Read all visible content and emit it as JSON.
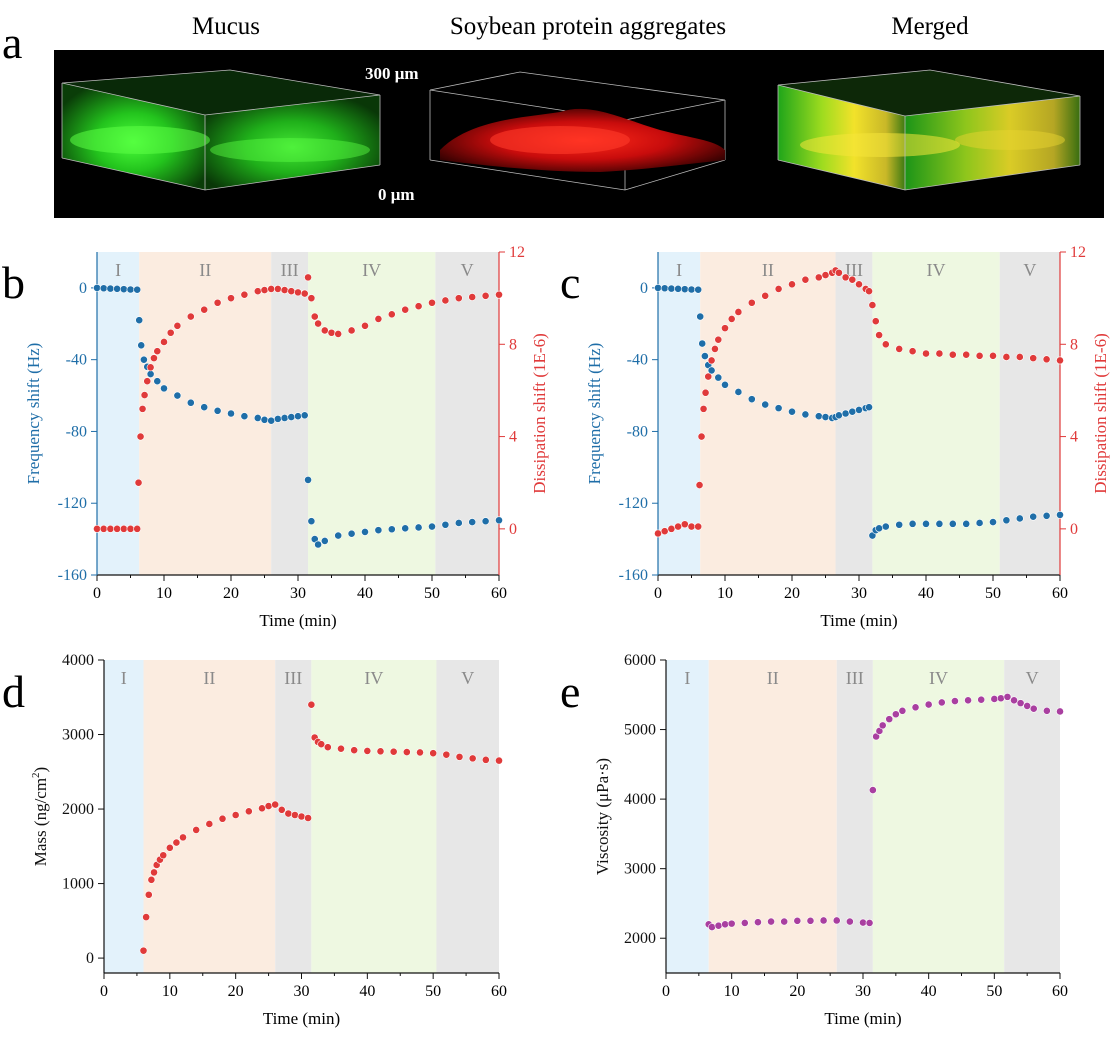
{
  "panel_a": {
    "letter": "a",
    "titles": [
      "Mucus",
      "Soybean protein aggregates",
      "Merged"
    ],
    "scale_top": "300 μm",
    "scale_bottom": "0 μm"
  },
  "colors": {
    "frequency": "#1f6ea8",
    "dissipation": "#e03a3a",
    "mass": "#e03a3a",
    "viscosity": "#a93fa0",
    "region_I": "#e3f2fb",
    "region_II": "#fbece0",
    "region_III": "#e7e7e7",
    "region_IV": "#eef8e1",
    "region_V": "#e7e7e7"
  },
  "chart_data": [
    {
      "panel": "b",
      "type": "scatter",
      "xlabel": "Time (min)",
      "ylabel": "Frequency shift (Hz)",
      "y2label": "Dissipation shift (1E-6)",
      "xlim": [
        0,
        60
      ],
      "ylim": [
        -160,
        20
      ],
      "y2lim": [
        -2,
        12
      ],
      "xticks": [
        0,
        10,
        20,
        30,
        40,
        50,
        60
      ],
      "yticks": [
        0,
        -40,
        -80,
        -120,
        -160
      ],
      "y2ticks": [
        0,
        4,
        8,
        12
      ],
      "regions": [
        {
          "label": "I",
          "start": 0,
          "end": 6.3,
          "color": "#e3f2fb"
        },
        {
          "label": "II",
          "start": 6.3,
          "end": 26,
          "color": "#fbece0"
        },
        {
          "label": "III",
          "start": 26,
          "end": 31.5,
          "color": "#e7e7e7"
        },
        {
          "label": "IV",
          "start": 31.5,
          "end": 50.5,
          "color": "#eef8e1"
        },
        {
          "label": "V",
          "start": 50.5,
          "end": 60,
          "color": "#e7e7e7"
        }
      ],
      "series": [
        {
          "axis": "left",
          "color": "#1f6ea8",
          "x": [
            0,
            1,
            2,
            3,
            4,
            5,
            6,
            6.3,
            6.6,
            7,
            7.5,
            8,
            9,
            10,
            12,
            14,
            16,
            18,
            20,
            22,
            24,
            25,
            26,
            27,
            28,
            29,
            30,
            31,
            31.5,
            32,
            32.5,
            33,
            34,
            36,
            38,
            40,
            42,
            44,
            46,
            48,
            50,
            52,
            54,
            56,
            58,
            60
          ],
          "y": [
            0,
            -0.2,
            -0.4,
            -0.5,
            -0.7,
            -0.9,
            -1,
            -18,
            -32,
            -40,
            -44,
            -48,
            -52,
            -56,
            -60,
            -64,
            -66.5,
            -68.5,
            -70,
            -71.5,
            -72.5,
            -73.5,
            -74,
            -73,
            -72.5,
            -72,
            -71.5,
            -71,
            -107,
            -130,
            -140,
            -143,
            -141,
            -138,
            -137,
            -136,
            -135,
            -134.5,
            -134,
            -133.5,
            -133,
            -132,
            -131,
            -130.5,
            -130,
            -129.5
          ]
        },
        {
          "axis": "right",
          "color": "#e03a3a",
          "x": [
            0,
            1,
            2,
            3,
            4,
            5,
            6,
            6.2,
            6.5,
            6.8,
            7.1,
            7.5,
            8,
            8.5,
            9,
            10,
            11,
            12,
            14,
            16,
            18,
            20,
            22,
            24,
            25,
            26,
            27,
            28,
            29,
            30,
            31,
            31.5,
            32,
            32.5,
            33,
            34,
            35,
            36,
            38,
            40,
            42,
            44,
            46,
            48,
            50,
            52,
            54,
            56,
            58,
            60
          ],
          "y": [
            0,
            0,
            0,
            0,
            0,
            0,
            0,
            2,
            4,
            5.2,
            5.8,
            6.4,
            7,
            7.4,
            7.7,
            8.1,
            8.5,
            8.8,
            9.2,
            9.5,
            9.8,
            10,
            10.15,
            10.3,
            10.35,
            10.4,
            10.4,
            10.35,
            10.3,
            10.25,
            10.2,
            10.9,
            10,
            9.2,
            8.9,
            8.6,
            8.5,
            8.45,
            8.6,
            8.8,
            9.1,
            9.3,
            9.5,
            9.65,
            9.8,
            9.9,
            10,
            10.05,
            10.1,
            10.15
          ]
        }
      ]
    },
    {
      "panel": "c",
      "type": "scatter",
      "xlabel": "Time (min)",
      "ylabel": "Frequency shift (Hz)",
      "y2label": "Dissipation shift (1E-6)",
      "xlim": [
        0,
        60
      ],
      "ylim": [
        -160,
        20
      ],
      "y2lim": [
        -2,
        12
      ],
      "xticks": [
        0,
        10,
        20,
        30,
        40,
        50,
        60
      ],
      "yticks": [
        0,
        -40,
        -80,
        -120,
        -160
      ],
      "y2ticks": [
        0,
        4,
        8,
        12
      ],
      "regions": [
        {
          "label": "I",
          "start": 0,
          "end": 6.3,
          "color": "#e3f2fb"
        },
        {
          "label": "II",
          "start": 6.3,
          "end": 26.5,
          "color": "#fbece0"
        },
        {
          "label": "III",
          "start": 26.5,
          "end": 32,
          "color": "#e7e7e7"
        },
        {
          "label": "IV",
          "start": 32,
          "end": 51,
          "color": "#eef8e1"
        },
        {
          "label": "V",
          "start": 51,
          "end": 60,
          "color": "#e7e7e7"
        }
      ],
      "series": [
        {
          "axis": "left",
          "color": "#1f6ea8",
          "x": [
            0,
            1,
            2,
            3,
            4,
            5,
            6,
            6.3,
            6.6,
            7,
            7.5,
            8,
            9,
            10,
            12,
            14,
            16,
            18,
            20,
            22,
            24,
            25,
            26,
            26.5,
            27,
            28,
            29,
            30,
            31,
            31.5,
            32,
            32.5,
            33,
            34,
            36,
            38,
            40,
            42,
            44,
            46,
            48,
            50,
            52,
            54,
            56,
            58,
            60
          ],
          "y": [
            0,
            -0.2,
            -0.4,
            -0.5,
            -0.7,
            -0.9,
            -1,
            -16,
            -31,
            -38,
            -43,
            -46,
            -50,
            -54,
            -58,
            -62,
            -65,
            -67,
            -69,
            -70.5,
            -71.5,
            -72,
            -72.5,
            -72,
            -71,
            -70,
            -69,
            -68,
            -67,
            -66.5,
            -138,
            -135,
            -134,
            -133,
            -132,
            -131.5,
            -131.5,
            -131.5,
            -131.5,
            -131.5,
            -131,
            -130.5,
            -129.5,
            -128.5,
            -127.5,
            -127,
            -126.5
          ]
        },
        {
          "axis": "right",
          "color": "#e03a3a",
          "x": [
            0,
            1,
            2,
            3,
            4,
            5,
            6,
            6.2,
            6.5,
            6.8,
            7.1,
            7.5,
            8,
            8.5,
            9,
            10,
            11,
            12,
            14,
            16,
            18,
            20,
            22,
            24,
            25,
            26,
            26.5,
            27,
            28,
            29,
            30,
            31,
            31.5,
            32,
            32.5,
            33,
            34,
            36,
            38,
            40,
            42,
            44,
            46,
            48,
            50,
            52,
            54,
            56,
            58,
            60
          ],
          "y": [
            -0.2,
            -0.1,
            0,
            0.1,
            0.2,
            0.1,
            0.1,
            1.9,
            4,
            5.2,
            5.9,
            6.6,
            7.3,
            7.8,
            8.2,
            8.7,
            9.1,
            9.4,
            9.8,
            10.1,
            10.4,
            10.6,
            10.8,
            10.9,
            11,
            11.1,
            11.2,
            11.1,
            10.9,
            10.8,
            10.6,
            10.4,
            10.3,
            9.7,
            9,
            8.4,
            8.0,
            7.8,
            7.7,
            7.6,
            7.6,
            7.55,
            7.55,
            7.5,
            7.5,
            7.45,
            7.45,
            7.4,
            7.35,
            7.3
          ]
        }
      ]
    },
    {
      "panel": "d",
      "type": "scatter",
      "xlabel": "Time (min)",
      "ylabel": "Mass (ng/cm",
      "ylabel_sup": "2",
      "ylabel_end": ")",
      "xlim": [
        0,
        60
      ],
      "ylim": [
        -200,
        4000
      ],
      "xticks": [
        0,
        10,
        20,
        30,
        40,
        50,
        60
      ],
      "yticks": [
        0,
        1000,
        2000,
        3000,
        4000
      ],
      "regions": [
        {
          "label": "I",
          "start": 0,
          "end": 6,
          "color": "#e3f2fb"
        },
        {
          "label": "II",
          "start": 6,
          "end": 26,
          "color": "#fbece0"
        },
        {
          "label": "III",
          "start": 26,
          "end": 31.5,
          "color": "#e7e7e7"
        },
        {
          "label": "IV",
          "start": 31.5,
          "end": 50.5,
          "color": "#eef8e1"
        },
        {
          "label": "V",
          "start": 50.5,
          "end": 60,
          "color": "#e7e7e7"
        }
      ],
      "series": [
        {
          "axis": "left",
          "color": "#e03a3a",
          "x": [
            6,
            6.4,
            6.8,
            7.2,
            7.6,
            8,
            8.5,
            9,
            10,
            11,
            12,
            14,
            16,
            18,
            20,
            22,
            24,
            25,
            26,
            27,
            28,
            29,
            30,
            31,
            31.5,
            32,
            32.5,
            33,
            34,
            36,
            38,
            40,
            42,
            44,
            46,
            48,
            50,
            52,
            54,
            56,
            58,
            60
          ],
          "y": [
            100,
            550,
            850,
            1050,
            1150,
            1250,
            1320,
            1380,
            1480,
            1550,
            1620,
            1720,
            1800,
            1870,
            1920,
            1970,
            2010,
            2040,
            2060,
            1990,
            1940,
            1920,
            1900,
            1880,
            3400,
            2960,
            2900,
            2870,
            2830,
            2810,
            2790,
            2780,
            2775,
            2770,
            2765,
            2760,
            2750,
            2730,
            2700,
            2680,
            2660,
            2650
          ]
        }
      ]
    },
    {
      "panel": "e",
      "type": "scatter",
      "xlabel": "Time (min)",
      "ylabel": "Viscosity (μPa·s)",
      "xlim": [
        0,
        60
      ],
      "ylim": [
        1500,
        6000
      ],
      "xticks": [
        0,
        10,
        20,
        30,
        40,
        50,
        60
      ],
      "yticks": [
        2000,
        3000,
        4000,
        5000,
        6000
      ],
      "regions": [
        {
          "label": "I",
          "start": 0,
          "end": 6.5,
          "color": "#e3f2fb"
        },
        {
          "label": "II",
          "start": 6.5,
          "end": 26,
          "color": "#fbece0"
        },
        {
          "label": "III",
          "start": 26,
          "end": 31.5,
          "color": "#e7e7e7"
        },
        {
          "label": "IV",
          "start": 31.5,
          "end": 51.5,
          "color": "#eef8e1"
        },
        {
          "label": "V",
          "start": 51.5,
          "end": 60,
          "color": "#e7e7e7"
        }
      ],
      "series": [
        {
          "axis": "left",
          "color": "#a93fa0",
          "x": [
            6.5,
            7,
            8,
            9,
            10,
            12,
            14,
            16,
            18,
            20,
            22,
            24,
            26,
            28,
            30,
            31,
            31.5,
            32,
            32.5,
            33,
            34,
            35,
            36,
            38,
            40,
            42,
            44,
            46,
            48,
            50,
            51,
            52,
            53,
            54,
            55,
            56,
            58,
            60
          ],
          "y": [
            2200,
            2160,
            2180,
            2200,
            2210,
            2220,
            2230,
            2240,
            2240,
            2250,
            2250,
            2255,
            2255,
            2240,
            2225,
            2220,
            4130,
            4900,
            4980,
            5060,
            5150,
            5220,
            5270,
            5320,
            5360,
            5390,
            5410,
            5420,
            5430,
            5440,
            5450,
            5470,
            5420,
            5380,
            5340,
            5300,
            5270,
            5260
          ]
        }
      ]
    }
  ]
}
